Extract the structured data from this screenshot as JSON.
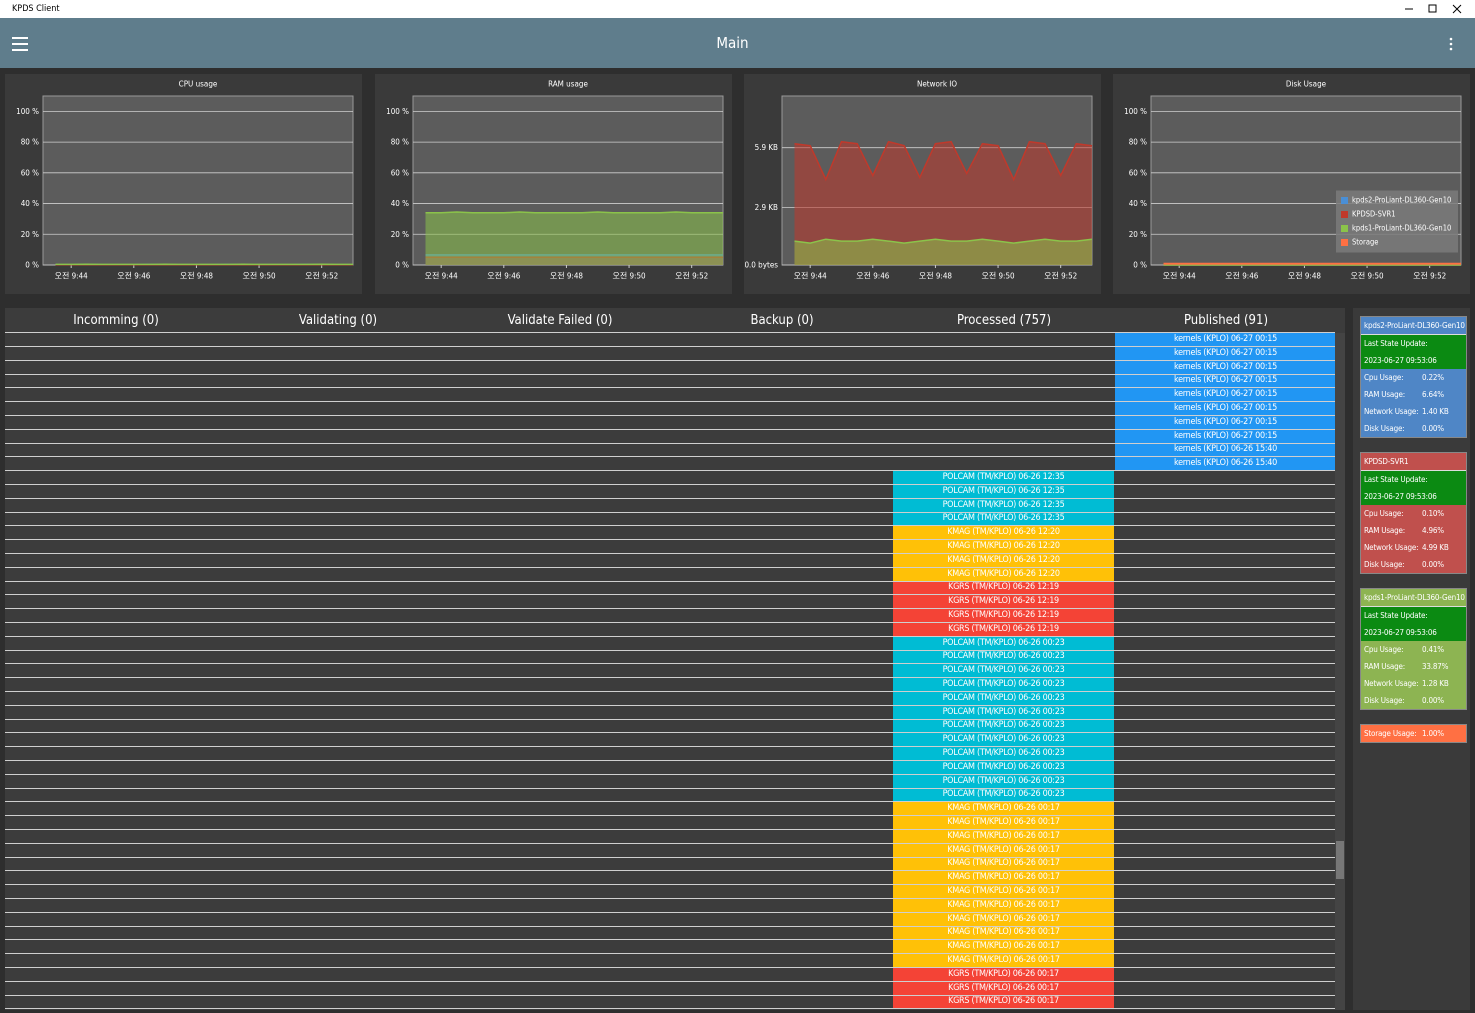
{
  "window": {
    "title": "KPDS Client"
  },
  "header": {
    "title": "Main"
  },
  "chart_data": [
    {
      "type": "area",
      "title": "CPU usage",
      "x": [
        583.5,
        584,
        584.5,
        585,
        585.5,
        586,
        586.5,
        587,
        587.5,
        588,
        588.5,
        589,
        589.5,
        590,
        590.5,
        591,
        591.5,
        592,
        592.5,
        593
      ],
      "xlim": [
        583.1,
        593
      ],
      "xticks": [
        {
          "value": 584,
          "label": "오전 9:44"
        },
        {
          "value": 586,
          "label": "오전 9:46"
        },
        {
          "value": 588,
          "label": "오전 9:48"
        },
        {
          "value": 590,
          "label": "오전 9:50"
        },
        {
          "value": 592,
          "label": "오전 9:52"
        }
      ],
      "ylim": [
        0,
        110
      ],
      "yticks": [
        {
          "value": 0,
          "label": "0 %"
        },
        {
          "value": 20,
          "label": "20 %"
        },
        {
          "value": 40,
          "label": "40 %"
        },
        {
          "value": 60,
          "label": "60 %"
        },
        {
          "value": 80,
          "label": "80 %"
        },
        {
          "value": 100,
          "label": "100 %"
        }
      ],
      "grid": true,
      "legend": false,
      "series": [
        {
          "color": "#4a8fd6",
          "values": [
            0.2,
            0.2,
            0.3,
            0.2,
            0.2,
            0.2,
            0.3,
            0.2,
            0.2,
            0.2,
            0.2,
            0.3,
            0.2,
            0.2,
            0.2,
            0.2,
            0.3,
            0.2,
            0.2,
            0.2
          ]
        },
        {
          "color": "#c0392b",
          "values": [
            0.1,
            0.1,
            0.1,
            0.2,
            0.1,
            0.1,
            0.1,
            0.1,
            0.2,
            0.1,
            0.1,
            0.1,
            0.1,
            0.1,
            0.2,
            0.1,
            0.1,
            0.1,
            0.1,
            0.1
          ]
        },
        {
          "color": "#8bc34a",
          "values": [
            0.4,
            0.4,
            0.5,
            0.4,
            0.4,
            0.4,
            0.4,
            0.5,
            0.4,
            0.4,
            0.4,
            0.4,
            0.5,
            0.4,
            0.4,
            0.4,
            0.4,
            0.5,
            0.4,
            0.4
          ]
        }
      ]
    },
    {
      "type": "area",
      "title": "RAM usage",
      "x": [
        583.5,
        584,
        584.5,
        585,
        585.5,
        586,
        586.5,
        587,
        587.5,
        588,
        588.5,
        589,
        589.5,
        590,
        590.5,
        591,
        591.5,
        592,
        592.5,
        593
      ],
      "xlim": [
        583.1,
        593
      ],
      "xticks": [
        {
          "value": 584,
          "label": "오전 9:44"
        },
        {
          "value": 586,
          "label": "오전 9:46"
        },
        {
          "value": 588,
          "label": "오전 9:48"
        },
        {
          "value": 590,
          "label": "오전 9:50"
        },
        {
          "value": 592,
          "label": "오전 9:52"
        }
      ],
      "ylim": [
        0,
        110
      ],
      "yticks": [
        {
          "value": 0,
          "label": "0 %"
        },
        {
          "value": 20,
          "label": "20 %"
        },
        {
          "value": 40,
          "label": "40 %"
        },
        {
          "value": 60,
          "label": "60 %"
        },
        {
          "value": 80,
          "label": "80 %"
        },
        {
          "value": 100,
          "label": "100 %"
        }
      ],
      "grid": true,
      "legend": false,
      "series": [
        {
          "color": "#4a8fd6",
          "values": [
            6.6,
            6.6,
            6.6,
            6.6,
            6.6,
            6.6,
            6.6,
            6.6,
            6.6,
            6.6,
            6.6,
            6.6,
            6.6,
            6.6,
            6.6,
            6.6,
            6.6,
            6.6,
            6.6,
            6.6
          ]
        },
        {
          "color": "#c0392b",
          "values": [
            5,
            5,
            5,
            5,
            5,
            5,
            5,
            5,
            5,
            5,
            5,
            5,
            5,
            5,
            5,
            5,
            5,
            5,
            5,
            5
          ]
        },
        {
          "color": "#8bc34a",
          "values": [
            34,
            34,
            34.5,
            34,
            34,
            34,
            34.5,
            34,
            34,
            34,
            34,
            34.5,
            34,
            34,
            34,
            34,
            34.5,
            34,
            34,
            34
          ]
        }
      ]
    },
    {
      "type": "area",
      "title": "Network IO",
      "x": [
        583.5,
        584,
        584.5,
        585,
        585.5,
        586,
        586.5,
        587,
        587.5,
        588,
        588.5,
        589,
        589.5,
        590,
        590.5,
        591,
        591.5,
        592,
        592.5,
        593
      ],
      "xlim": [
        583.1,
        593
      ],
      "xticks": [
        {
          "value": 584,
          "label": "오전 9:44"
        },
        {
          "value": 586,
          "label": "오전 9:46"
        },
        {
          "value": 588,
          "label": "오전 9:48"
        },
        {
          "value": 590,
          "label": "오전 9:50"
        },
        {
          "value": 592,
          "label": "오전 9:52"
        }
      ],
      "ylim": [
        0,
        8.5
      ],
      "yticks": [
        {
          "value": 0,
          "label": "0.0 bytes"
        },
        {
          "value": 2.9,
          "label": "2.9 KB"
        },
        {
          "value": 5.9,
          "label": "5.9 KB"
        }
      ],
      "grid": true,
      "legend": false,
      "series": [
        {
          "color": "#c0392b",
          "values": [
            6.1,
            6.0,
            4.3,
            6.2,
            6.1,
            4.5,
            6.2,
            6.0,
            4.4,
            6.1,
            6.2,
            4.6,
            6.1,
            6.0,
            4.3,
            6.2,
            6.1,
            4.5,
            6.1,
            6.0
          ]
        },
        {
          "color": "#8bc34a",
          "values": [
            1.2,
            1.1,
            1.3,
            1.2,
            1.2,
            1.3,
            1.2,
            1.1,
            1.2,
            1.3,
            1.2,
            1.2,
            1.3,
            1.2,
            1.1,
            1.2,
            1.3,
            1.2,
            1.2,
            1.3
          ]
        }
      ]
    },
    {
      "type": "area",
      "title": "Disk Usage",
      "x": [
        583.5,
        584,
        584.5,
        585,
        585.5,
        586,
        586.5,
        587,
        587.5,
        588,
        588.5,
        589,
        589.5,
        590,
        590.5,
        591,
        591.5,
        592,
        592.5,
        593
      ],
      "xlim": [
        583.1,
        593
      ],
      "xticks": [
        {
          "value": 584,
          "label": "오전 9:44"
        },
        {
          "value": 586,
          "label": "오전 9:46"
        },
        {
          "value": 588,
          "label": "오전 9:48"
        },
        {
          "value": 590,
          "label": "오전 9:50"
        },
        {
          "value": 592,
          "label": "오전 9:52"
        }
      ],
      "ylim": [
        0,
        110
      ],
      "yticks": [
        {
          "value": 0,
          "label": "0 %"
        },
        {
          "value": 20,
          "label": "20 %"
        },
        {
          "value": 40,
          "label": "40 %"
        },
        {
          "value": 60,
          "label": "60 %"
        },
        {
          "value": 80,
          "label": "80 %"
        },
        {
          "value": 100,
          "label": "100 %"
        }
      ],
      "grid": true,
      "legend": "center right",
      "series": [
        {
          "name": "kpds2-ProLiant-DL360-Gen10",
          "color": "#4a8fd6",
          "values": [
            0,
            0,
            0,
            0,
            0,
            0,
            0,
            0,
            0,
            0,
            0,
            0,
            0,
            0,
            0,
            0,
            0,
            0,
            0,
            0
          ]
        },
        {
          "name": "KPDSD-SVR1",
          "color": "#c0392b",
          "values": [
            0,
            0,
            0,
            0,
            0,
            0,
            0,
            0,
            0,
            0,
            0,
            0,
            0,
            0,
            0,
            0,
            0,
            0,
            0,
            0
          ]
        },
        {
          "name": "kpds1-ProLiant-DL360-Gen10",
          "color": "#8bc34a",
          "values": [
            0,
            0,
            0,
            0,
            0,
            0,
            0,
            0,
            0,
            0,
            0,
            0,
            0,
            0,
            0,
            0,
            0,
            0,
            0,
            0
          ]
        },
        {
          "name": "Storage",
          "color": "#ff7043",
          "values": [
            1,
            1,
            1,
            1,
            1,
            1,
            1,
            1,
            1,
            1,
            1,
            1,
            1,
            1,
            1,
            1,
            1,
            1,
            1,
            1
          ]
        }
      ]
    }
  ],
  "table": {
    "columns": [
      "Incomming (0)",
      "Validating (0)",
      "Validate Failed (0)",
      "Backup (0)",
      "Processed (757)",
      "Published (91)"
    ],
    "runs": [
      {
        "column": 5,
        "color": "#2196f3",
        "labels": [
          "kernels (KPLO) 06-27 00:15",
          "kernels (KPLO) 06-27 00:15",
          "kernels (KPLO) 06-27 00:15",
          "kernels (KPLO) 06-27 00:15",
          "kernels (KPLO) 06-27 00:15",
          "kernels (KPLO) 06-27 00:15",
          "kernels (KPLO) 06-27 00:15",
          "kernels (KPLO) 06-27 00:15",
          "kernels (KPLO) 06-26 15:40",
          "kernels (KPLO) 06-26 15:40"
        ]
      },
      {
        "column": 4,
        "color": "#00bcd4",
        "labels": [
          "POLCAM (TM/KPLO) 06-26 12:35",
          "POLCAM (TM/KPLO) 06-26 12:35",
          "POLCAM (TM/KPLO) 06-26 12:35",
          "POLCAM (TM/KPLO) 06-26 12:35"
        ]
      },
      {
        "column": 4,
        "color": "#ffc107",
        "labels": [
          "KMAG (TM/KPLO) 06-26 12:20",
          "KMAG (TM/KPLO) 06-26 12:20",
          "KMAG (TM/KPLO) 06-26 12:20",
          "KMAG (TM/KPLO) 06-26 12:20"
        ]
      },
      {
        "column": 4,
        "color": "#f44336",
        "labels": [
          "KGRS (TM/KPLO) 06-26 12:19",
          "KGRS (TM/KPLO) 06-26 12:19",
          "KGRS (TM/KPLO) 06-26 12:19",
          "KGRS (TM/KPLO) 06-26 12:19"
        ]
      },
      {
        "column": 4,
        "color": "#00bcd4",
        "labels": [
          "POLCAM (TM/KPLO) 06-26 00:23",
          "POLCAM (TM/KPLO) 06-26 00:23",
          "POLCAM (TM/KPLO) 06-26 00:23",
          "POLCAM (TM/KPLO) 06-26 00:23",
          "POLCAM (TM/KPLO) 06-26 00:23",
          "POLCAM (TM/KPLO) 06-26 00:23",
          "POLCAM (TM/KPLO) 06-26 00:23",
          "POLCAM (TM/KPLO) 06-26 00:23",
          "POLCAM (TM/KPLO) 06-26 00:23",
          "POLCAM (TM/KPLO) 06-26 00:23",
          "POLCAM (TM/KPLO) 06-26 00:23",
          "POLCAM (TM/KPLO) 06-26 00:23"
        ]
      },
      {
        "column": 4,
        "color": "#ffc107",
        "labels": [
          "KMAG (TM/KPLO) 06-26 00:17",
          "KMAG (TM/KPLO) 06-26 00:17",
          "KMAG (TM/KPLO) 06-26 00:17",
          "KMAG (TM/KPLO) 06-26 00:17",
          "KMAG (TM/KPLO) 06-26 00:17",
          "KMAG (TM/KPLO) 06-26 00:17",
          "KMAG (TM/KPLO) 06-26 00:17",
          "KMAG (TM/KPLO) 06-26 00:17",
          "KMAG (TM/KPLO) 06-26 00:17",
          "KMAG (TM/KPLO) 06-26 00:17",
          "KMAG (TM/KPLO) 06-26 00:17",
          "KMAG (TM/KPLO) 06-26 00:17"
        ]
      },
      {
        "column": 4,
        "color": "#f44336",
        "labels": [
          "KGRS (TM/KPLO) 06-26 00:17",
          "KGRS (TM/KPLO) 06-26 00:17",
          "KGRS (TM/KPLO) 06-26 00:17"
        ]
      }
    ]
  },
  "servers": [
    {
      "name": "kpds2-ProLiant-DL360-Gen10",
      "color": "#4f86c6",
      "last_update_label": "Last State Update:",
      "last_update": "2023-06-27 09:53:06",
      "metrics": [
        {
          "label": "Cpu Usage:",
          "value": "0.22%"
        },
        {
          "label": "RAM Usage:",
          "value": "6.64%"
        },
        {
          "label": "Network Usage:",
          "value": "1.40 KB"
        },
        {
          "label": "Disk Usage:",
          "value": "0.00%"
        }
      ]
    },
    {
      "name": "KPDSD-SVR1",
      "color": "#c0504d",
      "last_update_label": "Last State Update:",
      "last_update": "2023-06-27 09:53:06",
      "metrics": [
        {
          "label": "Cpu Usage:",
          "value": "0.10%"
        },
        {
          "label": "RAM Usage:",
          "value": "4.96%"
        },
        {
          "label": "Network Usage:",
          "value": "4.99 KB"
        },
        {
          "label": "Disk Usage:",
          "value": "0.00%"
        }
      ]
    },
    {
      "name": "kpds1-ProLiant-DL360-Gen10",
      "color": "#8db452",
      "last_update_label": "Last State Update:",
      "last_update": "2023-06-27 09:53:06",
      "metrics": [
        {
          "label": "Cpu Usage:",
          "value": "0.41%"
        },
        {
          "label": "RAM Usage:",
          "value": "33.87%"
        },
        {
          "label": "Network Usage:",
          "value": "1.28 KB"
        },
        {
          "label": "Disk Usage:",
          "value": "0.00%"
        }
      ]
    }
  ],
  "storage": {
    "label": "Storage Usage:",
    "value": "1.00%",
    "color": "#ff7043"
  }
}
